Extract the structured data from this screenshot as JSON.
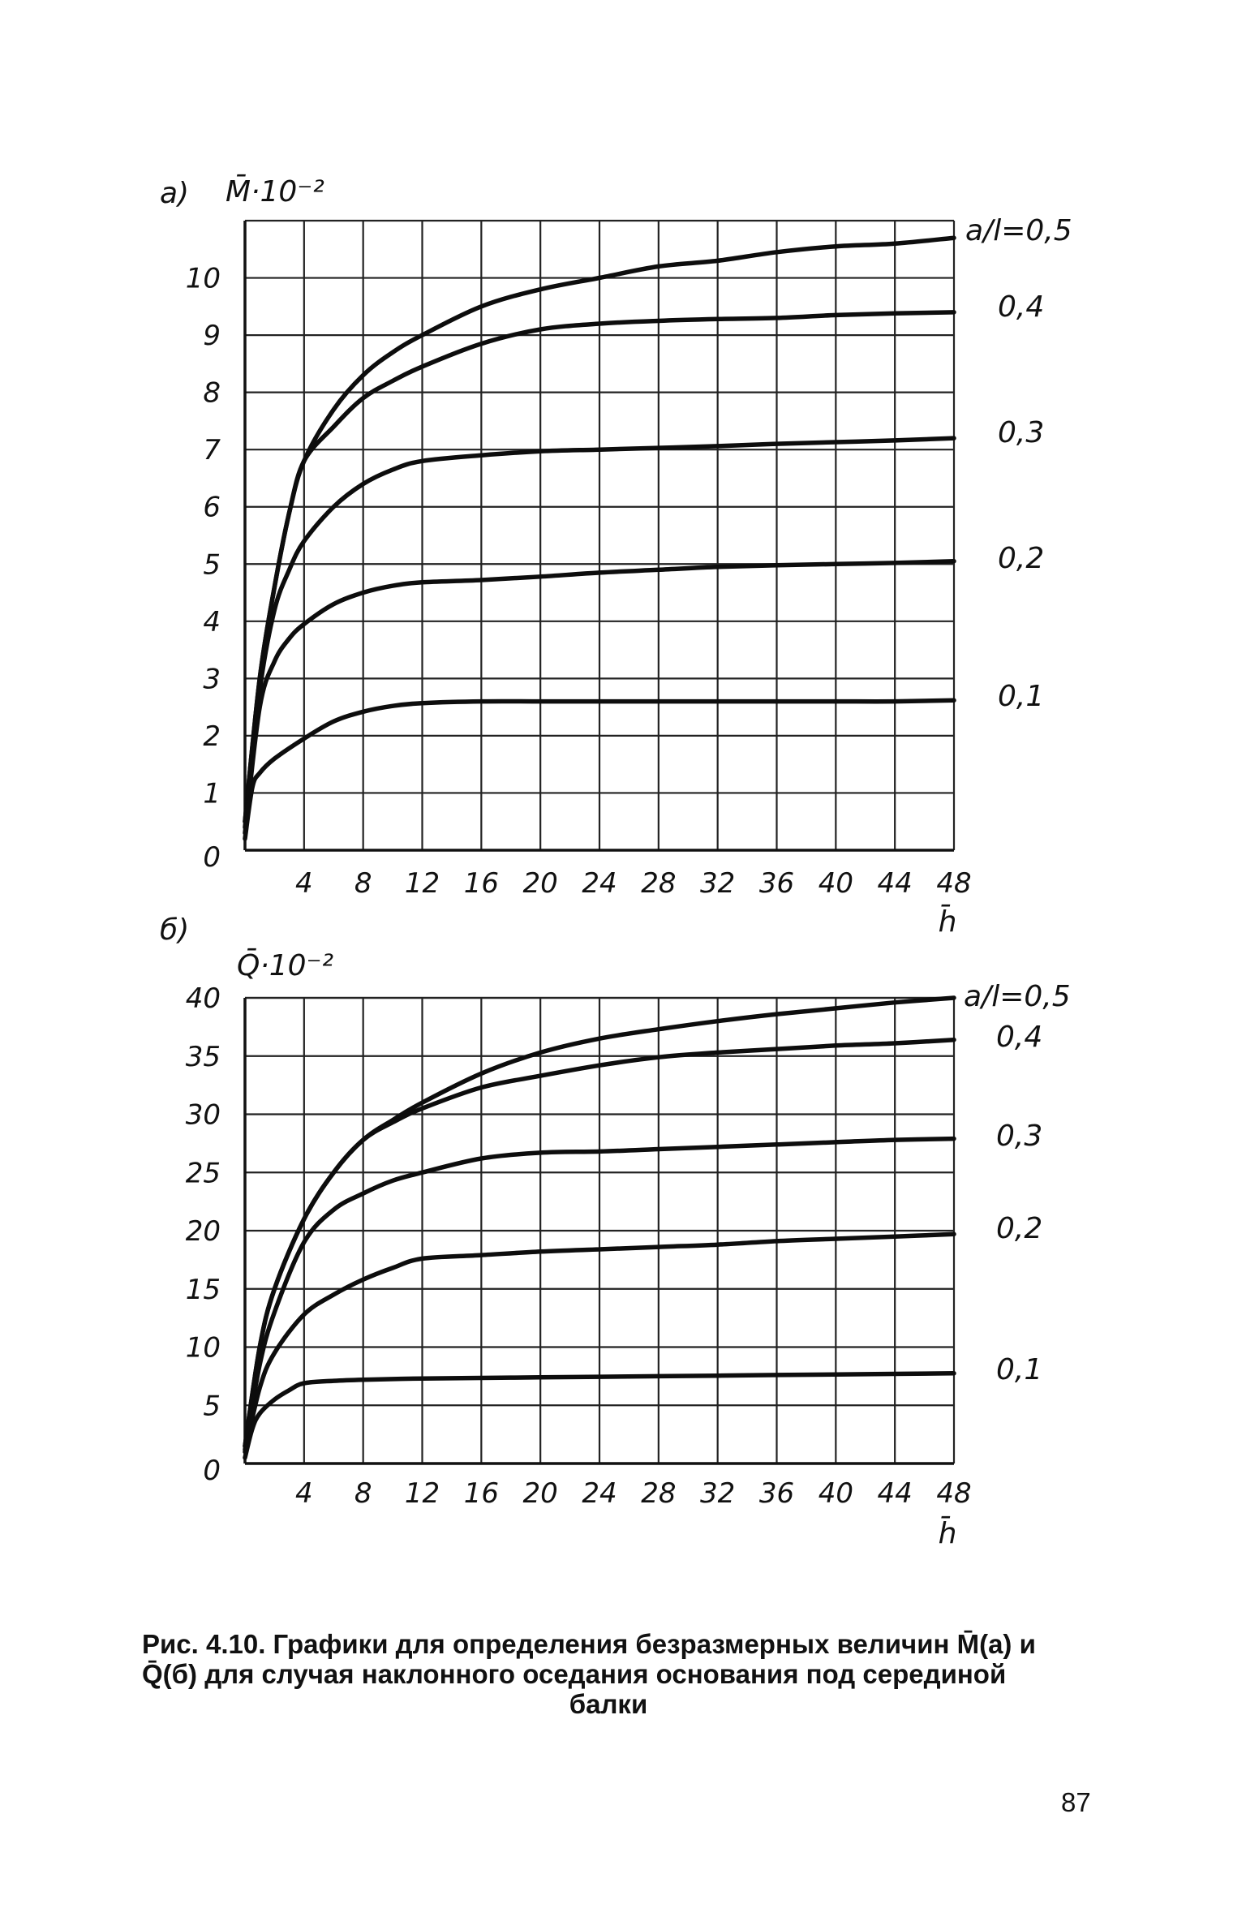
{
  "chart_data": [
    {
      "type": "line",
      "panel_label": "а)",
      "ylabel": "M̄·10⁻²",
      "xlabel": "h̄",
      "xlim": [
        0,
        48
      ],
      "ylim": [
        0,
        11
      ],
      "x_ticks": [
        4,
        8,
        12,
        16,
        20,
        24,
        28,
        32,
        36,
        40,
        44,
        48
      ],
      "y_ticks": [
        0,
        1,
        2,
        3,
        4,
        5,
        6,
        7,
        8,
        9,
        10
      ],
      "grid": true,
      "series": [
        {
          "name": "a/l=0,5",
          "x": [
            0,
            1,
            2,
            3,
            4,
            6,
            8,
            10,
            12,
            16,
            20,
            24,
            28,
            32,
            36,
            40,
            44,
            48
          ],
          "values": [
            0.5,
            3.0,
            4.6,
            5.9,
            6.8,
            7.7,
            8.3,
            8.7,
            9.0,
            9.5,
            9.8,
            10.0,
            10.2,
            10.3,
            10.45,
            10.55,
            10.6,
            10.7
          ]
        },
        {
          "name": "0,4",
          "x": [
            0,
            1,
            2,
            3,
            4,
            6,
            8,
            10,
            12,
            16,
            20,
            24,
            28,
            32,
            36,
            40,
            44,
            48
          ],
          "values": [
            0.5,
            3.0,
            4.6,
            5.9,
            6.8,
            7.4,
            7.9,
            8.2,
            8.45,
            8.85,
            9.1,
            9.2,
            9.25,
            9.28,
            9.3,
            9.35,
            9.38,
            9.4
          ]
        },
        {
          "name": "0,3",
          "x": [
            0,
            1,
            2,
            3,
            4,
            6,
            8,
            10,
            12,
            16,
            20,
            24,
            28,
            32,
            36,
            40,
            44,
            48
          ],
          "values": [
            0.4,
            2.8,
            4.2,
            4.9,
            5.4,
            6.0,
            6.4,
            6.65,
            6.8,
            6.9,
            6.97,
            7.0,
            7.03,
            7.06,
            7.1,
            7.13,
            7.16,
            7.2
          ]
        },
        {
          "name": "0,2",
          "x": [
            0,
            1,
            2,
            3,
            4,
            6,
            8,
            10,
            12,
            16,
            20,
            24,
            28,
            32,
            36,
            40,
            44,
            48
          ],
          "values": [
            0.3,
            2.5,
            3.3,
            3.7,
            3.95,
            4.3,
            4.5,
            4.62,
            4.68,
            4.72,
            4.78,
            4.85,
            4.9,
            4.95,
            4.98,
            5.0,
            5.02,
            5.05
          ]
        },
        {
          "name": "0,1",
          "x": [
            0,
            0.5,
            1,
            2,
            4,
            6,
            8,
            10,
            12,
            16,
            20,
            24,
            28,
            32,
            36,
            40,
            44,
            48
          ],
          "values": [
            0.2,
            1.1,
            1.35,
            1.6,
            1.95,
            2.25,
            2.42,
            2.52,
            2.57,
            2.6,
            2.6,
            2.6,
            2.6,
            2.6,
            2.6,
            2.6,
            2.6,
            2.62
          ]
        }
      ]
    },
    {
      "type": "line",
      "panel_label": "б)",
      "ylabel": "Q̄·10⁻²",
      "xlabel": "h̄",
      "xlim": [
        0,
        48
      ],
      "ylim": [
        0,
        40
      ],
      "x_ticks": [
        4,
        8,
        12,
        16,
        20,
        24,
        28,
        32,
        36,
        40,
        44,
        48
      ],
      "y_ticks": [
        0,
        5,
        10,
        15,
        20,
        25,
        30,
        35,
        40
      ],
      "grid": true,
      "series": [
        {
          "name": "a/l=0,5",
          "x": [
            0,
            1,
            2,
            4,
            6,
            8,
            10,
            12,
            16,
            20,
            24,
            28,
            32,
            36,
            40,
            44,
            48
          ],
          "values": [
            1.5,
            10.0,
            15.0,
            21.0,
            25.0,
            27.8,
            29.5,
            31.0,
            33.5,
            35.3,
            36.5,
            37.3,
            38.0,
            38.6,
            39.1,
            39.6,
            40.0
          ]
        },
        {
          "name": "0,4",
          "x": [
            0,
            1,
            2,
            4,
            6,
            8,
            10,
            12,
            16,
            20,
            24,
            28,
            32,
            36,
            40,
            44,
            48
          ],
          "values": [
            1.5,
            10.0,
            15.0,
            21.0,
            25.0,
            27.8,
            29.3,
            30.5,
            32.3,
            33.3,
            34.2,
            34.9,
            35.3,
            35.6,
            35.9,
            36.1,
            36.4
          ]
        },
        {
          "name": "0,3",
          "x": [
            0,
            1,
            2,
            4,
            6,
            8,
            10,
            12,
            16,
            20,
            24,
            28,
            32,
            36,
            40,
            44,
            48
          ],
          "values": [
            1.2,
            8.5,
            13.0,
            19.0,
            21.8,
            23.2,
            24.3,
            25.0,
            26.2,
            26.7,
            26.8,
            27.0,
            27.2,
            27.4,
            27.6,
            27.8,
            27.9
          ]
        },
        {
          "name": "0,2",
          "x": [
            0,
            1,
            2,
            4,
            6,
            8,
            10,
            12,
            16,
            20,
            24,
            28,
            32,
            36,
            40,
            44,
            48
          ],
          "values": [
            1.0,
            6.5,
            9.5,
            12.8,
            14.5,
            15.8,
            16.8,
            17.6,
            17.9,
            18.2,
            18.4,
            18.6,
            18.8,
            19.1,
            19.3,
            19.5,
            19.7
          ]
        },
        {
          "name": "0,1",
          "x": [
            0,
            0.5,
            1,
            2,
            3,
            4,
            6,
            8,
            12,
            16,
            20,
            24,
            28,
            32,
            36,
            40,
            44,
            48
          ],
          "values": [
            0.5,
            3.0,
            4.3,
            5.5,
            6.3,
            6.9,
            7.1,
            7.2,
            7.3,
            7.35,
            7.4,
            7.45,
            7.5,
            7.55,
            7.6,
            7.65,
            7.7,
            7.75
          ]
        }
      ]
    }
  ],
  "caption": {
    "line1": "Рис. 4.10. Графики для определения безразмерных величин M̄(а) и",
    "line2": "Q̄(б) для случая наклонного оседания основания под серединой",
    "line3": "балки"
  },
  "page_number": "87"
}
